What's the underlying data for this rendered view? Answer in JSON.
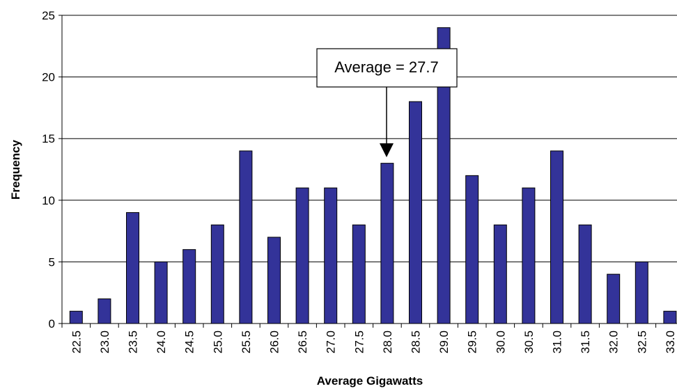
{
  "chart_data": {
    "type": "bar",
    "x_label": "Average Gigawatts",
    "y_label": "Frequency",
    "annotation": "Average = 27.7",
    "categories": [
      "22.5",
      "23.0",
      "23.5",
      "24.0",
      "24.5",
      "25.0",
      "25.5",
      "26.0",
      "26.5",
      "27.0",
      "27.5",
      "28.0",
      "28.5",
      "29.0",
      "29.5",
      "30.0",
      "30.5",
      "31.0",
      "31.5",
      "32.0",
      "32.5",
      "33.0"
    ],
    "values": [
      1,
      2,
      9,
      5,
      6,
      8,
      14,
      7,
      11,
      11,
      8,
      13,
      18,
      24,
      12,
      8,
      11,
      14,
      8,
      4,
      5,
      1
    ],
    "color": "#333399",
    "ylim": [
      0,
      25
    ],
    "yticks": [
      0,
      5,
      10,
      15,
      20,
      25
    ],
    "grid": true
  }
}
